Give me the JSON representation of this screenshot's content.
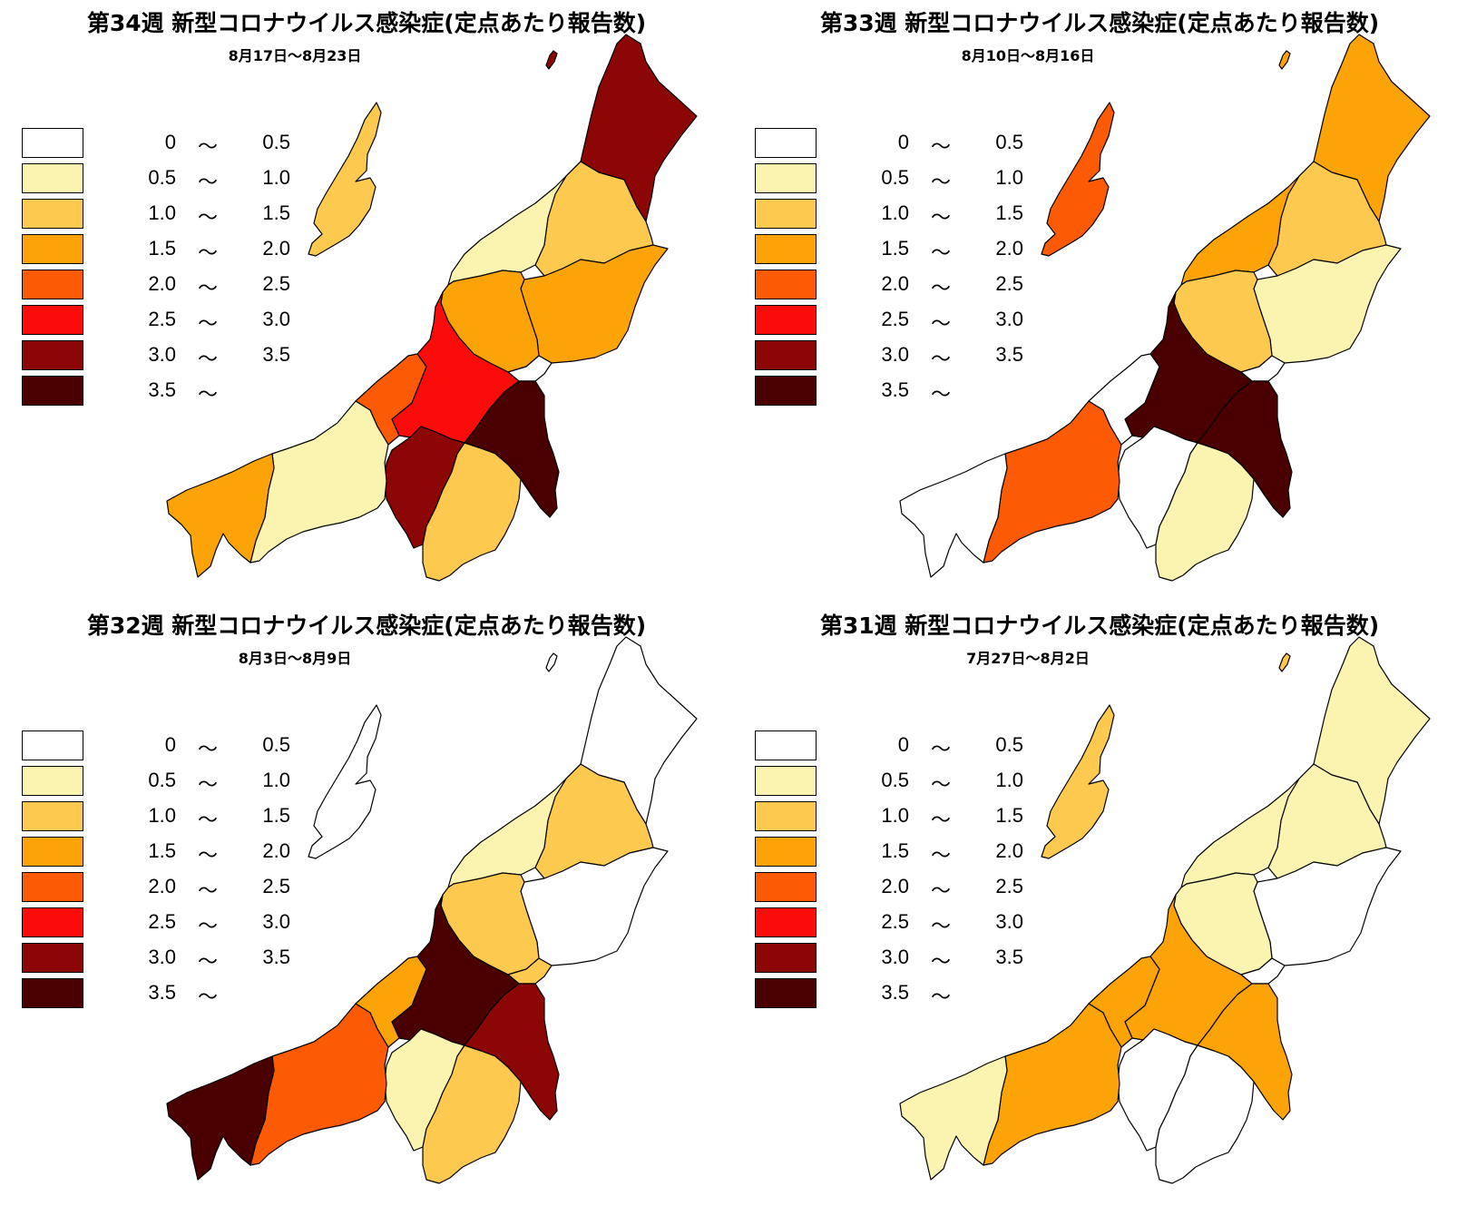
{
  "legend": [
    {
      "lo": "0",
      "hi": "0.5",
      "color": "#ffffff"
    },
    {
      "lo": "0.5",
      "hi": "1.0",
      "color": "#fbf3b0"
    },
    {
      "lo": "1.0",
      "hi": "1.5",
      "color": "#fdca4f"
    },
    {
      "lo": "1.5",
      "hi": "2.0",
      "color": "#fca307"
    },
    {
      "lo": "2.0",
      "hi": "2.5",
      "color": "#fc5a05"
    },
    {
      "lo": "2.5",
      "hi": "3.0",
      "color": "#fc0b0b"
    },
    {
      "lo": "3.0",
      "hi": "3.5",
      "color": "#8c0606"
    },
    {
      "lo": "3.5",
      "hi": "",
      "color": "#4a0000"
    }
  ],
  "tilde": "〜",
  "maps": [
    {
      "title": "第34週 新型コロナウイルス感染症(定点あたり報告数)",
      "period": "8月17日～8月23日",
      "regions": {
        "sado": 2,
        "awashima": 6,
        "murakami": 6,
        "niitsu": 1,
        "shibata": 2,
        "niigata": 3,
        "sanjo": 0,
        "tsubame": 0,
        "agano": 3,
        "nagaoka": 5,
        "kashiwazaki": 4,
        "uonuma": 6,
        "tokamachi": 7,
        "minamiuonuma": 2,
        "joetsu": 1,
        "itoigawa": 3
      }
    },
    {
      "title": "第33週 新型コロナウイルス感染症(定点あたり報告数)",
      "period": "8月10日～8月16日",
      "regions": {
        "sado": 4,
        "awashima": 3,
        "murakami": 3,
        "niitsu": 3,
        "shibata": 2,
        "niigata": 2,
        "sanjo": 0,
        "tsubame": 0,
        "agano": 1,
        "nagaoka": 7,
        "kashiwazaki": 0,
        "uonuma": 0,
        "tokamachi": 7,
        "minamiuonuma": 1,
        "joetsu": 4,
        "itoigawa": 0
      }
    },
    {
      "title": "第32週 新型コロナウイルス感染症(定点あたり報告数)",
      "period": "8月3日～8月9日",
      "regions": {
        "sado": 0,
        "awashima": 0,
        "murakami": 0,
        "niitsu": 1,
        "shibata": 2,
        "niigata": 2,
        "sanjo": 2,
        "tsubame": 7,
        "agano": 0,
        "nagaoka": 7,
        "kashiwazaki": 3,
        "uonuma": 1,
        "tokamachi": 6,
        "minamiuonuma": 2,
        "joetsu": 4,
        "itoigawa": 7
      }
    },
    {
      "title": "第31週 新型コロナウイルス感染症(定点あたり報告数)",
      "period": "7月27日～8月2日",
      "regions": {
        "sado": 2,
        "awashima": 2,
        "murakami": 1,
        "niitsu": 1,
        "shibata": 1,
        "niigata": 1,
        "sanjo": 0,
        "tsubame": 5,
        "agano": 0,
        "nagaoka": 3,
        "kashiwazaki": 3,
        "uonuma": 0,
        "tokamachi": 3,
        "minamiuonuma": 0,
        "joetsu": 3,
        "itoigawa": 1
      }
    }
  ]
}
